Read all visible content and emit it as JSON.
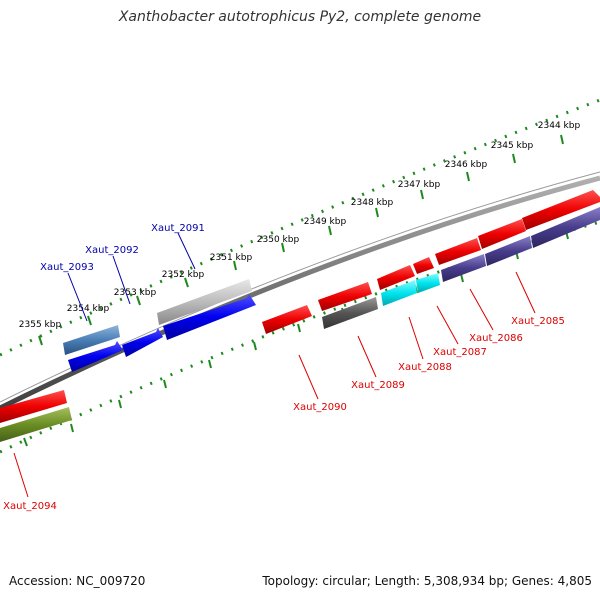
{
  "title": "Xanthobacter autotrophicus Py2, complete genome",
  "accession_text": "Accession: NC_009720",
  "summary_text": "Topology: circular; Length: 5,308,934 bp; Genes: 4,805",
  "colors": {
    "backbone": "#808080",
    "ruler_tick": "#1e8a1e",
    "label_top": "#0000aa",
    "label_bottom": "#dd0000"
  },
  "ruler_top": {
    "ticks": [
      {
        "kbp": 2355,
        "label": "2355 kbp"
      },
      {
        "kbp": 2354,
        "label": "2354 kbp"
      },
      {
        "kbp": 2353,
        "label": "2353 kbp"
      },
      {
        "kbp": 2352,
        "label": "2352 kbp"
      },
      {
        "kbp": 2351,
        "label": "2351 kbp"
      },
      {
        "kbp": 2350,
        "label": "2350 kbp"
      },
      {
        "kbp": 2349,
        "label": "2349 kbp"
      },
      {
        "kbp": 2348,
        "label": "2348 kbp"
      },
      {
        "kbp": 2347,
        "label": "2347 kbp"
      },
      {
        "kbp": 2346,
        "label": "2346 kbp"
      },
      {
        "kbp": 2345,
        "label": "2345 kbp"
      },
      {
        "kbp": 2344,
        "label": "2344 kbp"
      }
    ]
  },
  "genes_top": [
    {
      "id": "Xaut_2093",
      "label": "Xaut_2093",
      "color": "#0000ee"
    },
    {
      "id": "Xaut_2092",
      "label": "Xaut_2092",
      "color": "#0000ee"
    },
    {
      "id": "Xaut_2091",
      "label": "Xaut_2091",
      "color": "#0000ee"
    }
  ],
  "genes_bottom": [
    {
      "id": "Xaut_2094",
      "label": "Xaut_2094",
      "color": "#ee0000"
    },
    {
      "id": "Xaut_2090",
      "label": "Xaut_2090",
      "color": "#ee0000"
    },
    {
      "id": "Xaut_2089",
      "label": "Xaut_2089",
      "color": "#ee0000"
    },
    {
      "id": "Xaut_2088",
      "label": "Xaut_2088",
      "color": "#ee0000"
    },
    {
      "id": "Xaut_2087",
      "label": "Xaut_2087",
      "color": "#ee0000"
    },
    {
      "id": "Xaut_2086",
      "label": "Xaut_2086",
      "color": "#ee0000"
    },
    {
      "id": "Xaut_2085",
      "label": "Xaut_2085",
      "color": "#ee0000"
    }
  ],
  "cog_tracks": [
    {
      "color": "#4a7fb5"
    },
    {
      "color": "#bbbbbb"
    },
    {
      "color": "#6b8e23"
    },
    {
      "color": "#555555"
    },
    {
      "color": "#00e5ee"
    },
    {
      "color": "#483d8b"
    }
  ]
}
